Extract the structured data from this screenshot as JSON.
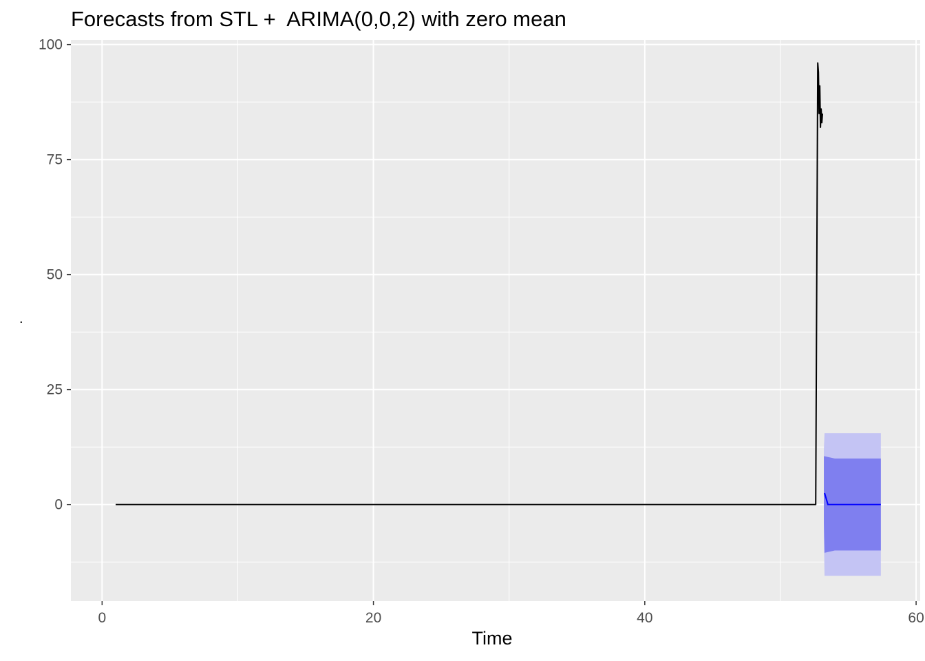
{
  "chart_data": {
    "type": "line",
    "title": "Forecasts from STL +  ARIMA(0,0,2) with zero mean",
    "xlabel": "Time",
    "ylabel": ".",
    "xlim": [
      -2.3,
      60.3
    ],
    "ylim": [
      -21,
      101
    ],
    "x_ticks": [
      0,
      20,
      40,
      60
    ],
    "y_ticks": [
      0,
      25,
      50,
      75,
      100
    ],
    "grid": true,
    "colors": {
      "panel": "#EBEBEB",
      "grid": "#FFFFFF",
      "observed": "#000000",
      "forecast": "#0000FF",
      "pi80": "#7F7FEF",
      "pi95": "#C4C4F4",
      "tick_text": "#4D4D4D"
    },
    "series": [
      {
        "points": [
          [
            1,
            0
          ],
          [
            52.6,
            0
          ],
          [
            52.65,
            32
          ],
          [
            52.7,
            64
          ],
          [
            52.75,
            96
          ],
          [
            52.8,
            94
          ],
          [
            52.85,
            85
          ],
          [
            52.9,
            91
          ],
          [
            52.95,
            82
          ],
          [
            53.0,
            86
          ],
          [
            53.05,
            83
          ],
          [
            53.1,
            85
          ]
        ]
      }
    ],
    "forecast": {
      "points": [
        [
          53.25,
          2.5
        ],
        [
          53.5,
          0
        ],
        [
          54,
          0
        ],
        [
          57.4,
          0
        ]
      ],
      "pi80": [
        [
          53.2,
          -4,
          10.5
        ],
        [
          53.25,
          -10.5,
          10.5
        ],
        [
          54,
          -10,
          10
        ],
        [
          57.4,
          -10,
          10
        ]
      ],
      "pi95": [
        [
          53.2,
          -7,
          12
        ],
        [
          53.25,
          -15.5,
          15.5
        ],
        [
          54,
          -15.5,
          15.5
        ],
        [
          57.4,
          -15.5,
          15.5
        ]
      ]
    }
  }
}
